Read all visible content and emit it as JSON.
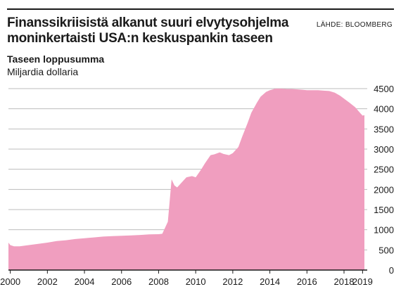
{
  "header": {
    "title_line1": "Finanssikriisistä alkanut suuri elvytysohjelma",
    "title_line2": "moninkertaisti USA:n keskuspankin taseen",
    "source": "LÄHDE: BLOOMBERG"
  },
  "panel": {
    "title": "Taseen loppusumma",
    "unit": "Miljardia dollaria"
  },
  "colors": {
    "area": "#f09ebf",
    "grid": "#bdbdbd",
    "axis": "#1a1a1a",
    "text": "#1a1a1a"
  },
  "chart_data": {
    "type": "area",
    "title": "Taseen loppusumma",
    "ylabel": "Miljardia dollaria",
    "xlabel": "",
    "xlim": [
      1999.9,
      2019.1
    ],
    "ylim": [
      0,
      4500
    ],
    "yticks": [
      0,
      500,
      1000,
      1500,
      2000,
      2500,
      3000,
      3500,
      4000,
      4500
    ],
    "xticks": [
      2000,
      2002,
      2004,
      2006,
      2008,
      2010,
      2012,
      2014,
      2016,
      2018,
      2019
    ],
    "ytick_side": "right",
    "grid": true,
    "series": [
      {
        "x": [
          1999.9,
          2000.0,
          2000.2,
          2000.5,
          2001.0,
          2001.5,
          2002.0,
          2002.5,
          2003.0,
          2003.5,
          2004.0,
          2004.5,
          2005.0,
          2005.5,
          2006.0,
          2006.5,
          2007.0,
          2007.5,
          2008.0,
          2008.2,
          2008.5,
          2008.7,
          2008.85,
          2009.0,
          2009.3,
          2009.5,
          2009.8,
          2010.0,
          2010.3,
          2010.5,
          2010.8,
          2011.0,
          2011.3,
          2011.5,
          2011.8,
          2012.0,
          2012.3,
          2012.5,
          2012.8,
          2013.0,
          2013.3,
          2013.5,
          2013.8,
          2014.0,
          2014.3,
          2014.6,
          2014.9,
          2015.2,
          2015.5,
          2015.8,
          2016.0,
          2016.3,
          2016.6,
          2016.9,
          2017.2,
          2017.5,
          2017.8,
          2018.0,
          2018.3,
          2018.6,
          2018.9,
          2019.0,
          2019.1
        ],
        "values": [
          680,
          620,
          590,
          590,
          620,
          650,
          680,
          720,
          740,
          770,
          790,
          810,
          830,
          840,
          850,
          860,
          870,
          885,
          890,
          900,
          1200,
          2250,
          2100,
          2050,
          2200,
          2300,
          2330,
          2300,
          2500,
          2650,
          2850,
          2870,
          2920,
          2880,
          2850,
          2900,
          3050,
          3300,
          3650,
          3900,
          4150,
          4300,
          4420,
          4460,
          4500,
          4500,
          4490,
          4490,
          4480,
          4470,
          4460,
          4460,
          4460,
          4450,
          4440,
          4400,
          4320,
          4250,
          4150,
          4040,
          3880,
          3830,
          3840
        ]
      }
    ]
  }
}
